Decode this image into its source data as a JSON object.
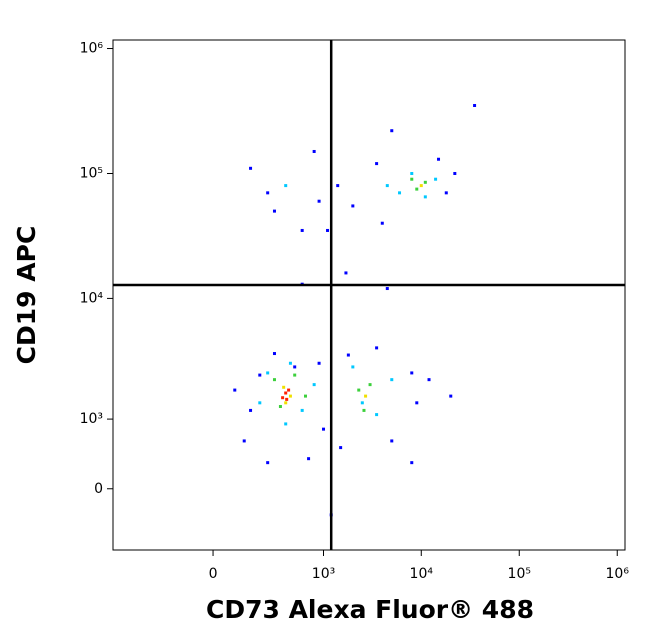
{
  "chart_data": {
    "type": "scatter",
    "x_label": "CD73 Alexa Fluor® 488",
    "y_label": "CD19 APC",
    "xlim": [
      -780,
      1200000
    ],
    "ylim": [
      -830,
      1170000
    ],
    "xticks": [
      0,
      {
        "value": 1000,
        "label": "10³"
      },
      {
        "value": 10000,
        "label": "10⁴"
      },
      {
        "value": 100000,
        "label": "10⁵"
      },
      {
        "value": 1000000,
        "label": "10⁶"
      }
    ],
    "yticks": [
      0,
      {
        "value": 1000,
        "label": "10³"
      },
      {
        "value": 10000,
        "label": "10⁴"
      },
      {
        "value": 100000,
        "label": "10⁵"
      },
      {
        "value": 1000000,
        "label": "10⁶"
      }
    ],
    "gates": {
      "x": 1200,
      "y": 12800
    },
    "series": [
      {
        "color": "#0000ff",
        "x": [
          150,
          900,
          120,
          1000,
          300,
          700,
          250,
          80,
          500,
          200,
          1800,
          8000,
          5000,
          9000,
          3500,
          1500,
          12000,
          20000,
          150,
          300,
          800,
          250,
          600,
          900,
          1400,
          2000,
          3500,
          4000,
          15000,
          18000,
          22000,
          35000,
          5000,
          600,
          1700,
          1100,
          4500,
          1200,
          8000
        ],
        "y": [
          1200,
          3000,
          600,
          800,
          3600,
          350,
          300,
          1800,
          2800,
          2400,
          3500,
          2500,
          600,
          1400,
          4000,
          500,
          2200,
          1600,
          110000,
          50000,
          150000,
          70000,
          35000,
          60000,
          80000,
          55000,
          120000,
          40000,
          130000,
          70000,
          100000,
          350000,
          220000,
          13000,
          16000,
          35000,
          12000,
          -300,
          300
        ]
      },
      {
        "color": "#00c8ff",
        "x": [
          250,
          600,
          450,
          200,
          800,
          2000,
          3500,
          5000,
          2500,
          400,
          6000,
          11000,
          14000,
          8000,
          4500,
          400
        ],
        "y": [
          2500,
          1200,
          3000,
          1400,
          2000,
          2800,
          1100,
          2200,
          1400,
          900,
          70000,
          65000,
          90000,
          100000,
          80000,
          80000
        ]
      },
      {
        "color": "#3cd03c",
        "x": [
          300,
          500,
          350,
          650,
          2300,
          3000,
          2600,
          9000,
          11000,
          8000
        ],
        "y": [
          2200,
          2400,
          1300,
          1600,
          1800,
          2000,
          1200,
          75000,
          85000,
          90000
        ]
      },
      {
        "color": "#f0e000",
        "x": [
          380,
          450,
          400,
          2700,
          10000
        ],
        "y": [
          1900,
          1600,
          1400,
          1600,
          80000
        ]
      },
      {
        "color": "#ff2000",
        "x": [
          400,
          430,
          370,
          410
        ],
        "y": [
          1700,
          1800,
          1550,
          1500
        ]
      }
    ]
  }
}
